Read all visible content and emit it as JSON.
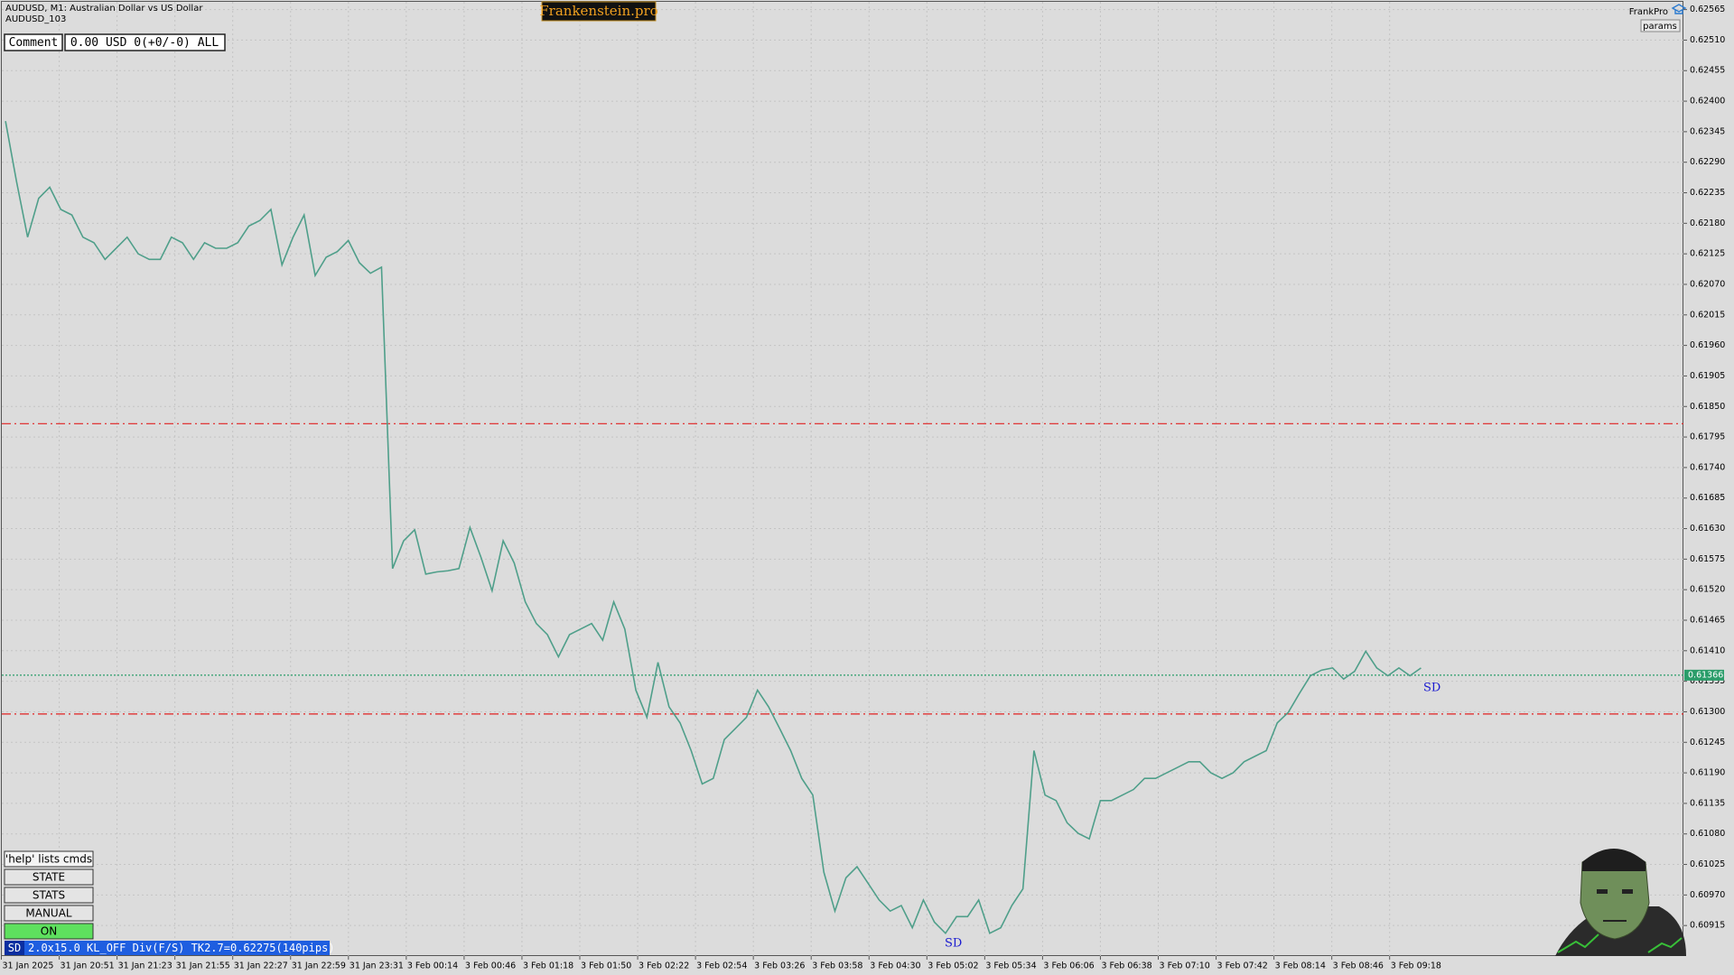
{
  "header": {
    "symbol": "AUDUSD, M1:  Australian Dollar vs US Dollar",
    "account": "AUDUSD_103"
  },
  "logo": "Frankenstein.pro",
  "comment": {
    "label": "Comment",
    "value": "0.00 USD 0(+0/-0) ALL"
  },
  "brand": {
    "name": "FrankPro",
    "params": "params"
  },
  "commands": {
    "hint": "'help' lists cmds",
    "buttons": [
      "STATE",
      "STATS",
      "MANUAL",
      "ON"
    ]
  },
  "status": {
    "tag": "SD",
    "text": "2.0x15.0 KL_OFF Div(F/S) TK2.7=0.62275(140pips)"
  },
  "chart_data": {
    "type": "line",
    "color": "#4f9f8a",
    "grid": true,
    "ylim": [
      0.6086,
      0.62579
    ],
    "yticks": [
      0.62565,
      {
        "value": 0.6251,
        "label": "0.62510"
      },
      0.62455,
      {
        "value": 0.624,
        "label": "0.62400"
      },
      0.62345,
      {
        "value": 0.6229,
        "label": "0.62290"
      },
      0.62235,
      {
        "value": 0.6218,
        "label": "0.62180"
      },
      0.62125,
      {
        "value": 0.6207,
        "label": "0.62070"
      },
      0.62015,
      {
        "value": 0.6196,
        "label": "0.61960"
      },
      0.61905,
      {
        "value": 0.6185,
        "label": "0.61850"
      },
      0.61795,
      {
        "value": 0.6174,
        "label": "0.61740"
      },
      0.61685,
      {
        "value": 0.6163,
        "label": "0.61630"
      },
      0.61575,
      {
        "value": 0.6152,
        "label": "0.61520"
      },
      0.61465,
      {
        "value": 0.6141,
        "label": "0.61410"
      },
      0.61355,
      {
        "value": 0.613,
        "label": "0.61300"
      },
      0.61245,
      {
        "value": 0.6119,
        "label": "0.61190"
      },
      0.61135,
      {
        "value": 0.6108,
        "label": "0.61080"
      },
      0.61025,
      {
        "value": 0.6097,
        "label": "0.60970"
      },
      0.60915
    ],
    "time_labels": [
      "31 Jan 2025",
      "31 Jan 20:51",
      "31 Jan 21:23",
      "31 Jan 21:55",
      "31 Jan 22:27",
      "31 Jan 22:59",
      "31 Jan 23:31",
      "3 Feb 00:14",
      "3 Feb 00:46",
      "3 Feb 01:18",
      "3 Feb 01:50",
      "3 Feb 02:22",
      "3 Feb 02:54",
      "3 Feb 03:26",
      "3 Feb 03:58",
      "3 Feb 04:30",
      "3 Feb 05:02",
      "3 Feb 05:34",
      "3 Feb 06:06",
      "3 Feb 06:38",
      "3 Feb 07:10",
      "3 Feb 07:42",
      "3 Feb 08:14",
      "3 Feb 08:46",
      "3 Feb 09:18"
    ],
    "values": [
      0.62364,
      0.62255,
      0.62155,
      0.62225,
      0.62245,
      0.62205,
      0.62195,
      0.62155,
      0.62145,
      0.62115,
      0.62135,
      0.62155,
      0.62125,
      0.62115,
      0.62115,
      0.62155,
      0.62145,
      0.62115,
      0.62145,
      0.62135,
      0.62135,
      0.62145,
      0.62175,
      0.62185,
      0.62205,
      0.62105,
      0.62155,
      0.62195,
      0.62086,
      0.62119,
      0.62129,
      0.62149,
      0.62109,
      0.6209,
      0.62101,
      0.61558,
      0.61608,
      0.61628,
      0.61548,
      0.61552,
      0.61554,
      0.61558,
      0.61632,
      0.61578,
      0.61518,
      0.61608,
      0.61568,
      0.61498,
      0.61459,
      0.61439,
      0.61399,
      0.61439,
      0.61449,
      0.61459,
      0.61429,
      0.61498,
      0.61449,
      0.61339,
      0.6129,
      0.61389,
      0.61309,
      0.6128,
      0.6123,
      0.6117,
      0.6118,
      0.6125,
      0.6127,
      0.6129,
      0.61339,
      0.61309,
      0.6127,
      0.6123,
      0.6118,
      0.6115,
      0.61011,
      0.60941,
      0.61001,
      0.61021,
      0.60991,
      0.60961,
      0.60941,
      0.60951,
      0.60911,
      0.60961,
      0.60921,
      0.60901,
      0.60931,
      0.60931,
      0.60961,
      0.60901,
      0.60911,
      0.60951,
      0.60981,
      0.6123,
      0.6115,
      0.6114,
      0.611,
      0.61081,
      0.61071,
      0.6114,
      0.6114,
      0.6115,
      0.6116,
      0.6118,
      0.6118,
      0.6119,
      0.612,
      0.6121,
      0.6121,
      0.6119,
      0.6118,
      0.6119,
      0.6121,
      0.6122,
      0.6123,
      0.6128,
      0.61299,
      0.61333,
      0.61365,
      0.61375,
      0.61379,
      0.61359,
      0.61373,
      0.61409,
      0.61379,
      0.61365,
      0.61379,
      0.61365,
      0.61379
    ],
    "levels": [
      {
        "value": 0.61819,
        "color": "#e02020",
        "dash": "dashdot"
      },
      {
        "value": 0.61296,
        "color": "#e02020",
        "dash": "dashdot"
      },
      {
        "value": 0.61366,
        "color": "#2a9d6a",
        "dash": "dotted",
        "tag": "0.61366"
      }
    ],
    "annotations": [
      {
        "text": "SD",
        "color": "#1a1ad0"
      },
      {
        "text": "SD",
        "color": "#1a1ad0"
      }
    ]
  }
}
